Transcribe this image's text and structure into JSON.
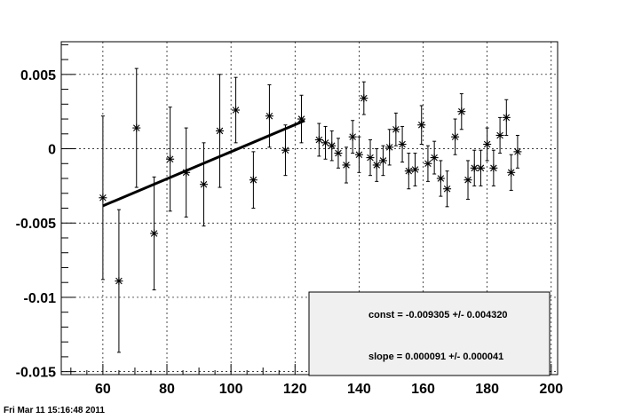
{
  "timestamp": "Fri Mar 11 15:16:48 2011",
  "fit_box": {
    "const_text": "const = -0.009305 +/- 0.004320",
    "slope_text": "slope = 0.000091 +/- 0.000041"
  },
  "chart_data": {
    "type": "scatter",
    "grid": true,
    "xlim": [
      47,
      202
    ],
    "ylim": [
      -0.0152,
      0.0072
    ],
    "x_ticks": [
      60,
      80,
      100,
      120,
      140,
      160,
      180,
      200
    ],
    "x_tick_labels": [
      "60",
      "80",
      "100",
      "120",
      "140",
      "160",
      "180",
      "200"
    ],
    "y_ticks": [
      0.005,
      0,
      -0.005,
      -0.01,
      -0.015
    ],
    "y_tick_labels": [
      "0.005",
      "0",
      "-0.005",
      "-0.01",
      "-0.015"
    ],
    "points": [
      {
        "x": 60,
        "y": -0.0033,
        "err": 0.0055
      },
      {
        "x": 65,
        "y": -0.0089,
        "err": 0.0048
      },
      {
        "x": 70.5,
        "y": 0.0014,
        "err": 0.004
      },
      {
        "x": 76,
        "y": -0.0057,
        "err": 0.0038
      },
      {
        "x": 81,
        "y": -0.0007,
        "err": 0.0035
      },
      {
        "x": 86,
        "y": -0.0016,
        "err": 0.003
      },
      {
        "x": 91.5,
        "y": -0.0024,
        "err": 0.0028
      },
      {
        "x": 96.5,
        "y": 0.0012,
        "err": 0.0038
      },
      {
        "x": 101.5,
        "y": 0.0026,
        "err": 0.0022
      },
      {
        "x": 107,
        "y": -0.0021,
        "err": 0.0019
      },
      {
        "x": 112,
        "y": 0.0022,
        "err": 0.0021
      },
      {
        "x": 117,
        "y": -0.0001,
        "err": 0.0017
      },
      {
        "x": 122,
        "y": 0.002,
        "err": 0.0016
      },
      {
        "x": 127.5,
        "y": 0.0006,
        "err": 0.0011
      },
      {
        "x": 129.5,
        "y": 0.0004,
        "err": 0.0011
      },
      {
        "x": 131.5,
        "y": 0.0002,
        "err": 0.001
      },
      {
        "x": 133.5,
        "y": -0.0003,
        "err": 0.001
      },
      {
        "x": 136,
        "y": -0.0011,
        "err": 0.0012
      },
      {
        "x": 138,
        "y": 0.0008,
        "err": 0.0011
      },
      {
        "x": 140,
        "y": -0.0004,
        "err": 0.0012
      },
      {
        "x": 141.5,
        "y": 0.0034,
        "err": 0.0011
      },
      {
        "x": 143.5,
        "y": -0.0006,
        "err": 0.0012
      },
      {
        "x": 145.5,
        "y": -0.0011,
        "err": 0.0011
      },
      {
        "x": 147.5,
        "y": -0.0008,
        "err": 0.001
      },
      {
        "x": 149.5,
        "y": 0.0001,
        "err": 0.0012
      },
      {
        "x": 151.5,
        "y": 0.0013,
        "err": 0.0011
      },
      {
        "x": 153.5,
        "y": 0.0003,
        "err": 0.0012
      },
      {
        "x": 155.5,
        "y": -0.0015,
        "err": 0.0012
      },
      {
        "x": 157.5,
        "y": -0.0014,
        "err": 0.0011
      },
      {
        "x": 159.5,
        "y": 0.0016,
        "err": 0.0013
      },
      {
        "x": 161.5,
        "y": -0.001,
        "err": 0.0012
      },
      {
        "x": 163.5,
        "y": -0.0006,
        "err": 0.0011
      },
      {
        "x": 165.5,
        "y": -0.002,
        "err": 0.0012
      },
      {
        "x": 167.5,
        "y": -0.0027,
        "err": 0.0012
      },
      {
        "x": 170,
        "y": 0.0008,
        "err": 0.0012
      },
      {
        "x": 172,
        "y": 0.0025,
        "err": 0.0012
      },
      {
        "x": 174,
        "y": -0.0021,
        "err": 0.0013
      },
      {
        "x": 176,
        "y": -0.0013,
        "err": 0.0012
      },
      {
        "x": 178,
        "y": -0.0013,
        "err": 0.0012
      },
      {
        "x": 180,
        "y": 0.0003,
        "err": 0.0011
      },
      {
        "x": 182,
        "y": -0.0013,
        "err": 0.0012
      },
      {
        "x": 184,
        "y": 0.0009,
        "err": 0.0012
      },
      {
        "x": 186,
        "y": 0.0021,
        "err": 0.0012
      },
      {
        "x": 187.5,
        "y": -0.0016,
        "err": 0.0012
      },
      {
        "x": 189.5,
        "y": -0.0002,
        "err": 0.0011
      }
    ],
    "fit": {
      "function": "const + slope*x",
      "const": -0.009305,
      "slope": 9.1e-05,
      "x_range": [
        60,
        123
      ]
    }
  }
}
